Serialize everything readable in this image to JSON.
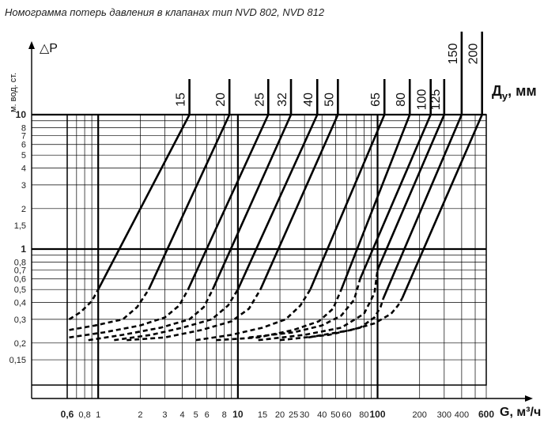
{
  "title": "Номограмма потерь давления в клапанах тип NVD 802, NVD 812",
  "chart_data": {
    "type": "line",
    "title": "Номограмма потерь давления в клапанах тип NVD 802, NVD 812",
    "xlabel": "G, м³/ч",
    "ylabel_symbol": "△P",
    "ylabel_units": "м. вод. ст.",
    "series_label": "Д",
    "series_label_sub": "у",
    "series_label_units": ", мм",
    "x_scale": "log",
    "y_scale": "log",
    "xlim": [
      0.6,
      600
    ],
    "ylim": [
      0.1,
      10
    ],
    "grid": true,
    "x_ticks": [
      {
        "value": 0.6,
        "label": "0,6",
        "major": true
      },
      {
        "value": 0.8,
        "label": "0,8"
      },
      {
        "value": 1,
        "label": "1"
      },
      {
        "value": 2,
        "label": "2"
      },
      {
        "value": 3,
        "label": "3"
      },
      {
        "value": 4,
        "label": "4"
      },
      {
        "value": 5,
        "label": "5"
      },
      {
        "value": 6,
        "label": "6"
      },
      {
        "value": 8,
        "label": "8"
      },
      {
        "value": 10,
        "label": "10",
        "major": true
      },
      {
        "value": 15,
        "label": "15"
      },
      {
        "value": 20,
        "label": "20"
      },
      {
        "value": 25,
        "label": "25"
      },
      {
        "value": 30,
        "label": "30"
      },
      {
        "value": 40,
        "label": "40"
      },
      {
        "value": 50,
        "label": "50"
      },
      {
        "value": 60,
        "label": "60"
      },
      {
        "value": 80,
        "label": "80"
      },
      {
        "value": 100,
        "label": "100",
        "major": true
      },
      {
        "value": 200,
        "label": "200"
      },
      {
        "value": 300,
        "label": "300"
      },
      {
        "value": 400,
        "label": "400"
      },
      {
        "value": 600,
        "label": "600",
        "major": true
      }
    ],
    "y_ticks": [
      {
        "value": 10,
        "label": "10",
        "major": true
      },
      {
        "value": 8,
        "label": "8"
      },
      {
        "value": 7,
        "label": "7"
      },
      {
        "value": 6,
        "label": "6"
      },
      {
        "value": 5,
        "label": "5"
      },
      {
        "value": 4,
        "label": "4"
      },
      {
        "value": 3,
        "label": "3"
      },
      {
        "value": 2,
        "label": "2"
      },
      {
        "value": 1.5,
        "label": "1,5"
      },
      {
        "value": 1,
        "label": "1",
        "major": true
      },
      {
        "value": 0.8,
        "label": "0,8"
      },
      {
        "value": 0.7,
        "label": "0,7"
      },
      {
        "value": 0.6,
        "label": "0,6"
      },
      {
        "value": 0.5,
        "label": "0,5"
      },
      {
        "value": 0.4,
        "label": "0,4"
      },
      {
        "value": 0.3,
        "label": "0,3"
      },
      {
        "value": 0.2,
        "label": "0,2"
      },
      {
        "value": 0.15,
        "label": "0,15"
      }
    ],
    "series": [
      {
        "name": "15",
        "solid": [
          [
            1,
            0.5
          ],
          [
            4.5,
            10
          ]
        ],
        "dashed": [
          [
            0.62,
            0.3
          ],
          [
            0.75,
            0.34
          ],
          [
            0.9,
            0.41
          ],
          [
            1,
            0.5
          ]
        ]
      },
      {
        "name": "20",
        "solid": [
          [
            2.3,
            0.5
          ],
          [
            8.7,
            10
          ]
        ],
        "dashed": [
          [
            0.62,
            0.25
          ],
          [
            0.95,
            0.27
          ],
          [
            1.5,
            0.3
          ],
          [
            1.9,
            0.37
          ],
          [
            2.3,
            0.5
          ]
        ]
      },
      {
        "name": "25",
        "solid": [
          [
            4.4,
            0.5
          ],
          [
            16.5,
            10
          ]
        ],
        "dashed": [
          [
            0.62,
            0.22
          ],
          [
            1.1,
            0.24
          ],
          [
            2,
            0.27
          ],
          [
            3,
            0.31
          ],
          [
            3.8,
            0.38
          ],
          [
            4.4,
            0.5
          ]
        ]
      },
      {
        "name": "32",
        "solid": [
          [
            6.6,
            0.5
          ],
          [
            24,
            10
          ]
        ],
        "dashed": [
          [
            0.85,
            0.21
          ],
          [
            1.5,
            0.23
          ],
          [
            2.8,
            0.26
          ],
          [
            4.5,
            0.3
          ],
          [
            5.7,
            0.37
          ],
          [
            6.6,
            0.5
          ]
        ]
      },
      {
        "name": "40",
        "solid": [
          [
            10,
            0.5
          ],
          [
            37,
            10
          ]
        ],
        "dashed": [
          [
            1.3,
            0.21
          ],
          [
            2.4,
            0.23
          ],
          [
            4,
            0.26
          ],
          [
            6.5,
            0.3
          ],
          [
            8.5,
            0.38
          ],
          [
            10,
            0.5
          ]
        ]
      },
      {
        "name": "50",
        "solid": [
          [
            14.5,
            0.5
          ],
          [
            52,
            10
          ]
        ],
        "dashed": [
          [
            1.6,
            0.21
          ],
          [
            3,
            0.22
          ],
          [
            5.5,
            0.25
          ],
          [
            9,
            0.29
          ],
          [
            12,
            0.36
          ],
          [
            14.5,
            0.5
          ]
        ]
      },
      {
        "name": "65",
        "solid": [
          [
            33,
            0.5
          ],
          [
            112,
            10
          ]
        ],
        "dashed": [
          [
            5,
            0.21
          ],
          [
            9,
            0.23
          ],
          [
            15,
            0.26
          ],
          [
            22,
            0.3
          ],
          [
            28,
            0.38
          ],
          [
            33,
            0.5
          ]
        ]
      },
      {
        "name": "80",
        "solid": [
          [
            55,
            0.5
          ],
          [
            170,
            10
          ]
        ],
        "dashed": [
          [
            7,
            0.21
          ],
          [
            14,
            0.22
          ],
          [
            25,
            0.25
          ],
          [
            38,
            0.29
          ],
          [
            48,
            0.36
          ],
          [
            55,
            0.5
          ]
        ]
      },
      {
        "name": "100",
        "solid": [
          [
            75,
            0.6
          ],
          [
            240,
            10
          ]
        ],
        "dashed": [
          [
            12,
            0.22
          ],
          [
            25,
            0.24
          ],
          [
            40,
            0.27
          ],
          [
            55,
            0.32
          ],
          [
            68,
            0.42
          ],
          [
            75,
            0.6
          ]
        ]
      },
      {
        "name": "125",
        "solid": [
          [
            100,
            0.7
          ],
          [
            300,
            10
          ]
        ],
        "dashed": [
          [
            14,
            0.21
          ],
          [
            30,
            0.23
          ],
          [
            55,
            0.26
          ],
          [
            80,
            0.33
          ],
          [
            95,
            0.47
          ],
          [
            100,
            0.7
          ]
        ]
      },
      {
        "name": "150",
        "solid": [
          [
            110,
            0.43
          ],
          [
            400,
            10
          ]
        ],
        "dashed": [
          [
            20,
            0.21
          ],
          [
            45,
            0.23
          ],
          [
            75,
            0.26
          ],
          [
            95,
            0.31
          ],
          [
            105,
            0.37
          ],
          [
            110,
            0.43
          ]
        ]
      },
      {
        "name": "200",
        "solid": [
          [
            150,
            0.43
          ],
          [
            560,
            10
          ]
        ],
        "dashed": [
          [
            32,
            0.22
          ],
          [
            65,
            0.25
          ],
          [
            95,
            0.28
          ],
          [
            125,
            0.33
          ],
          [
            140,
            0.38
          ],
          [
            150,
            0.43
          ]
        ]
      }
    ],
    "legend": "top"
  }
}
